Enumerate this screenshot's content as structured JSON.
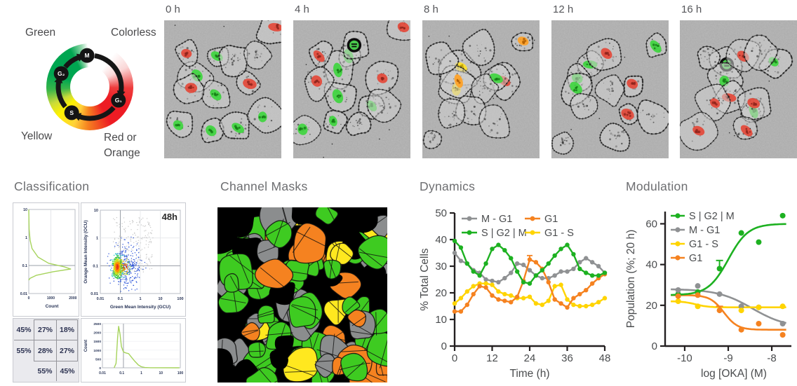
{
  "figure": {
    "wheel": {
      "corner_labels": {
        "top_left": "Green",
        "top_right": "Colorless",
        "bottom_left": "Yellow",
        "bottom_right": "Red or Orange"
      },
      "phases": [
        {
          "label": "M",
          "angle": 355
        },
        {
          "label": "G₁",
          "angle": 115
        },
        {
          "label": "S",
          "angle": 215
        },
        {
          "label": "G₂",
          "angle": 295
        }
      ],
      "ring_colors": {
        "green": "#00a651",
        "yellow": "#fff200",
        "orange": "#f58220",
        "red": "#ed1c24",
        "colorless": "#ffffff"
      }
    },
    "micrographs": [
      {
        "label": "0 h",
        "nuclei": [
          [
            0.45,
            0.26,
            "green"
          ],
          [
            0.28,
            0.4,
            "green"
          ],
          [
            0.44,
            0.54,
            "green"
          ],
          [
            0.12,
            0.76,
            "green"
          ],
          [
            0.4,
            0.8,
            "green"
          ],
          [
            0.63,
            0.78,
            "green"
          ],
          [
            0.84,
            0.7,
            "green"
          ],
          [
            0.19,
            0.24,
            "red"
          ],
          [
            0.23,
            0.49,
            "red"
          ],
          [
            0.73,
            0.46,
            "red"
          ],
          [
            0.95,
            0.05,
            "red"
          ],
          [
            0.6,
            0.3,
            "none"
          ],
          [
            0.8,
            0.25,
            "none"
          ]
        ]
      },
      {
        "label": "4 h",
        "nuclei": [
          [
            0.47,
            0.26,
            "green"
          ],
          [
            0.38,
            0.36,
            "green"
          ],
          [
            0.38,
            0.55,
            "green"
          ],
          [
            0.34,
            0.73,
            "green"
          ],
          [
            0.08,
            0.79,
            "green"
          ],
          [
            0.67,
            0.62,
            "green"
          ],
          [
            0.22,
            0.26,
            "red"
          ],
          [
            0.2,
            0.44,
            "red"
          ],
          [
            0.76,
            0.42,
            "red"
          ],
          [
            0.94,
            0.05,
            "red"
          ],
          [
            0.52,
            0.18,
            "mitotic"
          ],
          [
            0.55,
            0.74,
            "none"
          ],
          [
            0.79,
            0.62,
            "none"
          ]
        ]
      },
      {
        "label": "8 h",
        "nuclei": [
          [
            0.33,
            0.34,
            "yellow"
          ],
          [
            0.29,
            0.5,
            "yellow"
          ],
          [
            0.31,
            0.44,
            "orange"
          ],
          [
            0.86,
            0.15,
            "orange"
          ],
          [
            0.7,
            0.44,
            "red"
          ],
          [
            0.63,
            0.42,
            "green"
          ],
          [
            0.14,
            0.3,
            "none"
          ],
          [
            0.47,
            0.22,
            "none"
          ],
          [
            0.52,
            0.5,
            "none"
          ],
          [
            0.4,
            0.66,
            "none"
          ],
          [
            0.62,
            0.75,
            "none"
          ],
          [
            0.25,
            0.68,
            "none"
          ],
          [
            0.1,
            0.85,
            "none"
          ]
        ]
      },
      {
        "label": "12 h",
        "nuclei": [
          [
            0.33,
            0.32,
            "green"
          ],
          [
            0.22,
            0.42,
            "green"
          ],
          [
            0.21,
            0.49,
            "green"
          ],
          [
            0.89,
            0.19,
            "green"
          ],
          [
            0.47,
            0.24,
            "red"
          ],
          [
            0.69,
            0.46,
            "red"
          ],
          [
            0.65,
            0.68,
            "red"
          ],
          [
            0.3,
            0.62,
            "none"
          ],
          [
            0.5,
            0.5,
            "none"
          ],
          [
            0.57,
            0.84,
            "none"
          ],
          [
            0.1,
            0.88,
            "none"
          ],
          [
            0.86,
            0.7,
            "none"
          ]
        ]
      },
      {
        "label": "16 h",
        "nuclei": [
          [
            0.4,
            0.32,
            "mitotic"
          ],
          [
            0.38,
            0.44,
            "green"
          ],
          [
            0.8,
            0.3,
            "green"
          ],
          [
            0.63,
            0.66,
            "green"
          ],
          [
            0.54,
            0.26,
            "red"
          ],
          [
            0.42,
            0.56,
            "red"
          ],
          [
            0.63,
            0.6,
            "red"
          ],
          [
            0.3,
            0.6,
            "red"
          ],
          [
            0.16,
            0.8,
            "red"
          ],
          [
            0.57,
            0.8,
            "red"
          ],
          [
            0.7,
            0.22,
            "none"
          ],
          [
            0.25,
            0.25,
            "none"
          ]
        ]
      }
    ],
    "sections": {
      "classification": "Classification",
      "channel_masks": "Channel Masks",
      "dynamics": "Dynamics",
      "modulation": "Modulation"
    }
  },
  "mask_palette": {
    "green": "#3ecb21",
    "orange": "#f58220",
    "yellow": "#ffe81f",
    "gray": "#8b8d8e",
    "background": "#000000"
  },
  "nucleus_colors": {
    "green": "#3fd63f",
    "red": "#e4493a",
    "yellow": "#ffe32b",
    "orange": "#ffa226"
  },
  "chart_data": [
    {
      "id": "dynamics",
      "type": "line",
      "title": "Dynamics",
      "xlabel": "Time (h)",
      "ylabel": "% Total Cells",
      "xlim": [
        0,
        48
      ],
      "ylim": [
        0,
        50
      ],
      "xticks": [
        0,
        12,
        24,
        36,
        48
      ],
      "yticks": [
        0,
        10,
        20,
        30,
        40,
        50
      ],
      "x": [
        0,
        2,
        4,
        6,
        8,
        10,
        12,
        14,
        16,
        18,
        20,
        22,
        24,
        26,
        28,
        30,
        32,
        34,
        36,
        38,
        40,
        42,
        44,
        46,
        48
      ],
      "series": [
        {
          "name": "M - G1",
          "color": "#8f9193",
          "values": [
            35,
            32,
            31,
            28.5,
            27.5,
            25,
            24.5,
            24,
            25.5,
            27.5,
            31,
            30.5,
            28.5,
            26.5,
            25.5,
            25.5,
            26.5,
            28,
            28,
            29,
            31.5,
            33,
            31.5,
            30,
            27.5
          ]
        },
        {
          "name": "G1 - S",
          "color": "#ffd400",
          "values": [
            16,
            18,
            20.5,
            22.5,
            23.5,
            23.5,
            23,
            20.5,
            19.5,
            19,
            18,
            18,
            18.5,
            16,
            15.5,
            17,
            22.5,
            23,
            17.5,
            15.5,
            15,
            15,
            15.5,
            16.5,
            18
          ]
        },
        {
          "name": "G1",
          "color": "#f58220",
          "values": [
            13,
            13,
            15.5,
            19.5,
            22.5,
            22,
            19,
            17.5,
            17,
            16.5,
            18.5,
            24.5,
            32.5,
            31.5,
            29,
            24,
            17.5,
            16,
            14.5,
            18,
            19.5,
            21,
            23.5,
            25.5,
            27
          ],
          "error_at": {
            "x": 24,
            "plus": 1.5
          }
        },
        {
          "name": "S | G2 | M",
          "color": "#1db121",
          "values": [
            39.5,
            37,
            31,
            28,
            26.5,
            31,
            36.5,
            38,
            36,
            33,
            28,
            24,
            23.5,
            26.5,
            28.5,
            31,
            34,
            36.5,
            38,
            34.5,
            29,
            27.5,
            26.5,
            26.5,
            27.5
          ]
        }
      ],
      "legend": {
        "position": "top-inside",
        "columns": [
          [
            "M - G1",
            "S | G2 | M"
          ],
          [
            "G1",
            "G1 - S"
          ]
        ]
      }
    },
    {
      "id": "modulation",
      "type": "scatter-fit",
      "title": "Modulation",
      "xlabel": "log [OKA] (M)",
      "ylabel": "Population (%; 20 h)",
      "xlim": [
        -10.45,
        -7.55
      ],
      "ylim": [
        0,
        66
      ],
      "xticks": [
        -10,
        -9,
        -8
      ],
      "yticks": [
        0,
        20,
        40,
        60
      ],
      "x": [
        -10.15,
        -9.7,
        -9.2,
        -8.7,
        -8.3,
        -7.75
      ],
      "series": [
        {
          "name": "S | G2 | M",
          "color": "#1db121",
          "points": [
            25.5,
            26.5,
            38,
            55.5,
            51,
            64
          ],
          "error": {
            "index": 2,
            "plus": 4
          },
          "fit": {
            "bottom": 25,
            "top": 60,
            "ec50": -9.0,
            "hill": 1.9,
            "direction": "up"
          }
        },
        {
          "name": "M - G1",
          "color": "#8f9193",
          "points": [
            27.5,
            29.5,
            25.5,
            19.5,
            19,
            11
          ],
          "fit": {
            "bottom": 9,
            "top": 28,
            "ec50": -8.45,
            "hill": 1.1,
            "direction": "down"
          }
        },
        {
          "name": "G1 - S",
          "color": "#ffd400",
          "points": [
            22,
            19.5,
            null,
            17.5,
            19,
            19.5
          ],
          "fit": {
            "bottom": 19,
            "top": 22,
            "ec50": -9.75,
            "hill": 3,
            "direction": "down"
          }
        },
        {
          "name": "G1",
          "color": "#f58220",
          "points": [
            24.5,
            25,
            17.5,
            8,
            11,
            5.5
          ],
          "error": {
            "index": 2,
            "plus": 2
          },
          "fit": {
            "bottom": 8,
            "top": 25,
            "ec50": -9.1,
            "hill": 2.8,
            "direction": "down"
          }
        }
      ]
    },
    {
      "id": "classification-scatter",
      "type": "scatter",
      "annotation": "48h",
      "xlabel": "Green Mean Intensity (GCU)",
      "ylabel": "Orange Mean Intensity (OCU)",
      "xscale": "log",
      "yscale": "log",
      "xlim": [
        0.01,
        100
      ],
      "ylim": [
        0.01,
        10
      ],
      "xticks": [
        0.01,
        0.1,
        1,
        10,
        100
      ],
      "yticks": [
        0.01,
        0.1,
        1,
        10
      ],
      "crosshair": {
        "x": 0.1,
        "y": 0.1
      },
      "density_center": {
        "x": 0.07,
        "y": 0.09
      }
    },
    {
      "id": "classification-hist-side",
      "type": "area",
      "orientation": "horizontal",
      "xlabel": "Count",
      "xticks": [
        0,
        1000,
        2000
      ],
      "yticks": [
        0.01,
        0.1,
        1,
        10
      ],
      "yscale": "log",
      "color": "#a6d35c",
      "points": [
        [
          10,
          0
        ],
        [
          2,
          15
        ],
        [
          0.8,
          60
        ],
        [
          0.4,
          150
        ],
        [
          0.2,
          420
        ],
        [
          0.12,
          900
        ],
        [
          0.09,
          1600
        ],
        [
          0.075,
          1900
        ],
        [
          0.06,
          1100
        ],
        [
          0.045,
          350
        ],
        [
          0.035,
          60
        ],
        [
          0.03,
          0
        ]
      ]
    },
    {
      "id": "classification-hist-bottom",
      "type": "area",
      "ylabel": "Count",
      "yticks": [
        0,
        500,
        1000,
        1500,
        2000,
        2500
      ],
      "xticks": [
        0.01,
        0.1,
        1,
        10,
        100
      ],
      "xscale": "log",
      "ylim": [
        0,
        2500
      ],
      "color": "#a6d35c",
      "points": [
        [
          0.04,
          0
        ],
        [
          0.05,
          250
        ],
        [
          0.06,
          1700
        ],
        [
          0.068,
          2350
        ],
        [
          0.08,
          1900
        ],
        [
          0.095,
          1200
        ],
        [
          0.12,
          900
        ],
        [
          0.16,
          840
        ],
        [
          0.22,
          800
        ],
        [
          0.3,
          620
        ],
        [
          0.45,
          380
        ],
        [
          0.7,
          160
        ],
        [
          1.0,
          60
        ],
        [
          1.5,
          15
        ],
        [
          3,
          3
        ],
        [
          90,
          0
        ]
      ]
    },
    {
      "id": "classification-table",
      "type": "table",
      "rows": [
        [
          "45%",
          "27%",
          "18%"
        ],
        [
          "55%",
          "28%",
          "27%"
        ],
        [
          "",
          "55%",
          "45%"
        ]
      ]
    }
  ]
}
